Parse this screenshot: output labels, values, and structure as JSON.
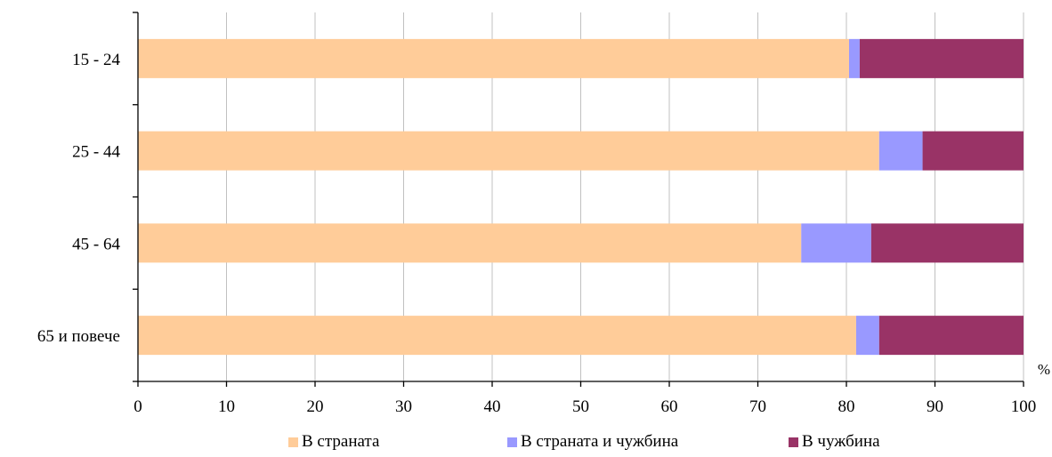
{
  "chart_data": {
    "type": "bar",
    "orientation": "horizontal",
    "stacked": true,
    "categories": [
      "15 - 24",
      "25 - 44",
      "45 - 64",
      "65 и повече"
    ],
    "series": [
      {
        "name": "В страната",
        "color": "#FFCC99",
        "values": [
          80.3,
          83.7,
          74.9,
          81.1
        ]
      },
      {
        "name": "В страната и чужбина",
        "color": "#9999FF",
        "values": [
          1.2,
          4.9,
          7.9,
          2.6
        ]
      },
      {
        "name": "В чужбина",
        "color": "#993366",
        "values": [
          18.5,
          11.4,
          17.2,
          16.3
        ]
      }
    ],
    "xlim": [
      0,
      100
    ],
    "xticks": [
      "0",
      "10",
      "20",
      "30",
      "40",
      "50",
      "60",
      "70",
      "80",
      "90",
      "100"
    ],
    "xlabel": "%",
    "grid": "vertical",
    "legend_position": "bottom"
  }
}
